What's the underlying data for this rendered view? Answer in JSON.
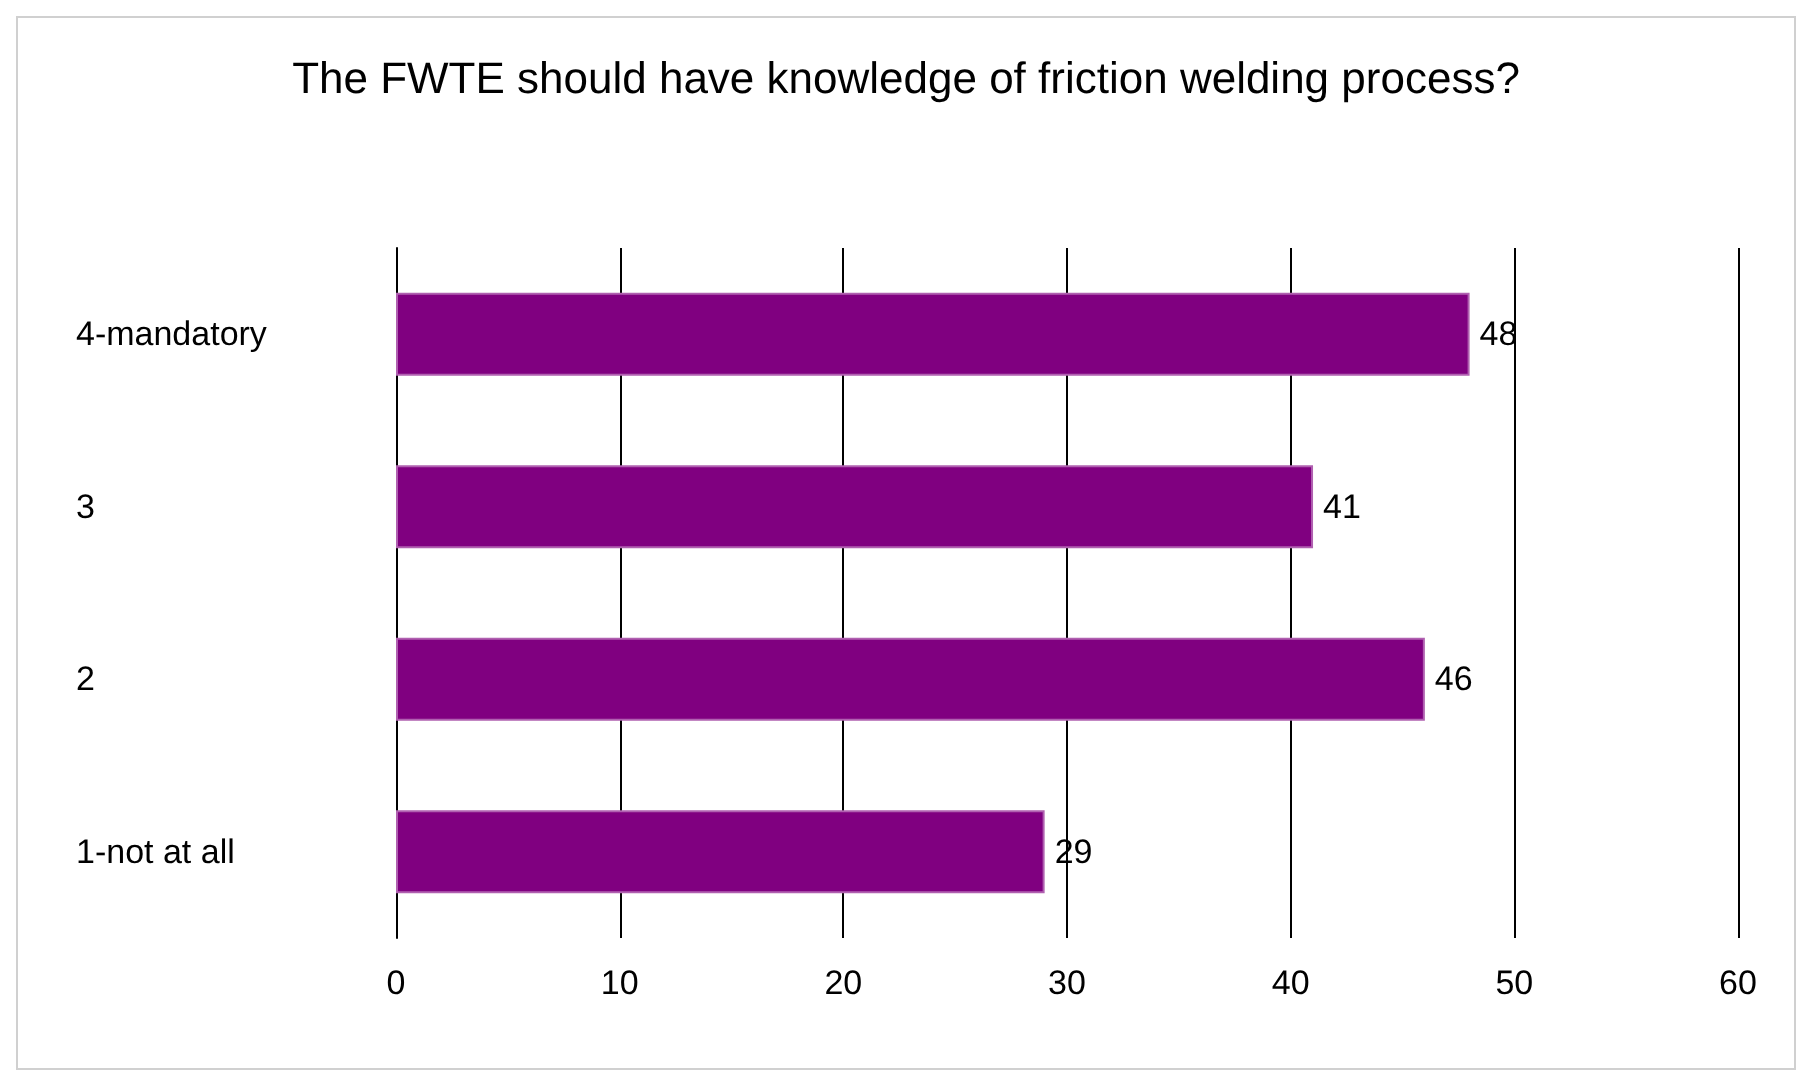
{
  "chart_data": {
    "type": "bar",
    "orientation": "horizontal",
    "title": "The FWTE should have knowledge of friction welding process?",
    "categories": [
      "4-mandatory",
      "3",
      "2",
      "1-not at all"
    ],
    "values": [
      48,
      41,
      46,
      29
    ],
    "color": "#800080",
    "xlim": [
      0,
      60
    ],
    "xticks": [
      0,
      10,
      20,
      30,
      40,
      50,
      60
    ],
    "grid": "x",
    "data_labels": true
  }
}
